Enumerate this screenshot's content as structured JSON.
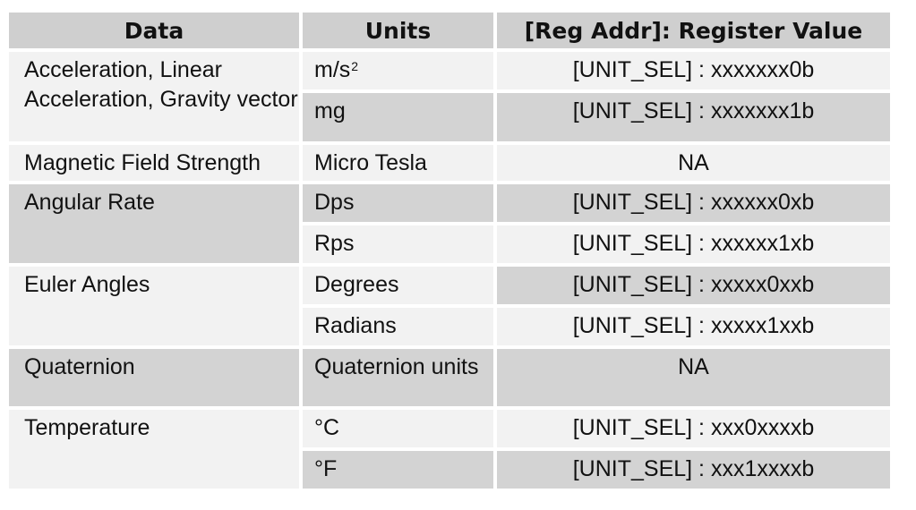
{
  "table": {
    "headers": [
      "Data",
      "Units",
      "[Reg Addr]: Register Value"
    ],
    "groups": [
      {
        "data": "Acceleration, Linear Acceleration, Gravity vector",
        "rows": [
          {
            "unit": "m/s",
            "unit_sup": "2",
            "value": "[UNIT_SEL] : xxxxxxx0b"
          },
          {
            "unit": "mg",
            "value": "[UNIT_SEL] : xxxxxxx1b"
          }
        ]
      },
      {
        "data": "Magnetic Field Strength",
        "rows": [
          {
            "unit": "Micro Tesla",
            "value": "NA"
          }
        ]
      },
      {
        "data": "Angular Rate",
        "rows": [
          {
            "unit": "Dps",
            "value": "[UNIT_SEL] : xxxxxx0xb"
          },
          {
            "unit": "Rps",
            "value": "[UNIT_SEL] : xxxxxx1xb"
          }
        ]
      },
      {
        "data": "Euler Angles",
        "rows": [
          {
            "unit": "Degrees",
            "value": "[UNIT_SEL] : xxxxx0xxb"
          },
          {
            "unit": "Radians",
            "value": "[UNIT_SEL] : xxxxx1xxb"
          }
        ]
      },
      {
        "data": "Quaternion",
        "rows": [
          {
            "unit": "Quaternion units",
            "value": "NA"
          }
        ]
      },
      {
        "data": "Temperature",
        "rows": [
          {
            "unit": "°C",
            "value": "[UNIT_SEL] : xxx0xxxxb"
          },
          {
            "unit": "°F",
            "value": "[UNIT_SEL] : xxx1xxxxb"
          }
        ]
      }
    ]
  }
}
